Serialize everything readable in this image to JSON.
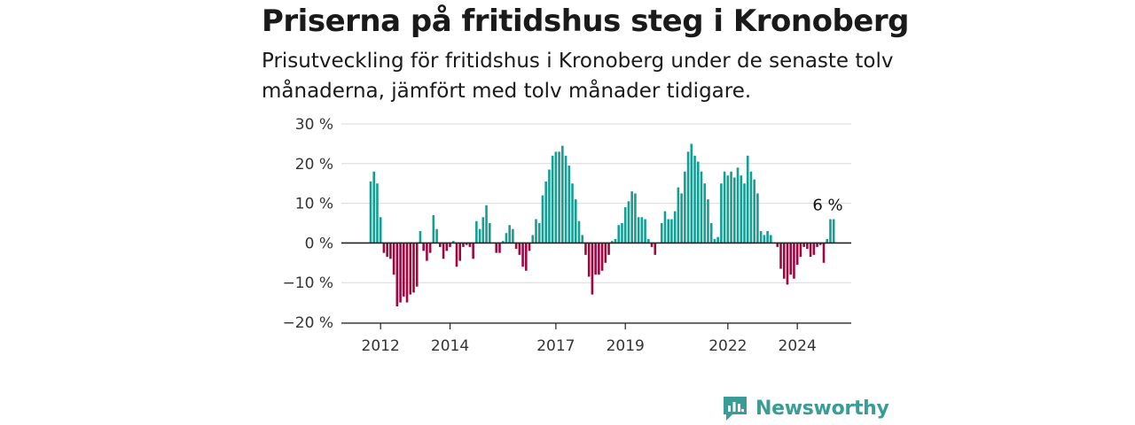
{
  "header": {
    "title": "Priserna på fritidshus steg i Kronoberg",
    "subtitle": "Prisutveckling för fritidshus i Kronoberg under de senaste tolv månaderna, jämfört med tolv månader tidigare."
  },
  "brand": {
    "name": "Newsworthy",
    "color": "#3a9c96"
  },
  "colors": {
    "positive": "#139f94",
    "negative": "#a0073f"
  },
  "chart_data": {
    "type": "bar",
    "title": "Priserna på fritidshus steg i Kronoberg",
    "subtitle": "Prisutveckling för fritidshus i Kronoberg under de senaste tolv månaderna, jämfört med tolv månader tidigare.",
    "xlabel": "",
    "ylabel": "",
    "ylim": [
      -20,
      30
    ],
    "yticks": [
      30,
      20,
      10,
      0,
      -10,
      -20
    ],
    "ytick_labels": [
      "30 %",
      "20 %",
      "10 %",
      "0 %",
      "−10 %",
      "−20 %"
    ],
    "xtick_labels": [
      "2012",
      "2014",
      "2017",
      "2019",
      "2022",
      "2024"
    ],
    "xtick_positions": [
      3,
      24,
      56,
      77,
      108,
      129
    ],
    "grid": true,
    "annotation": {
      "text": "6 %",
      "index": 139
    },
    "values": [
      15.5,
      18,
      15,
      6.5,
      -2.5,
      -3.5,
      -4,
      -8,
      -16,
      -15,
      -13.5,
      -15,
      -13,
      -12.5,
      -11,
      3,
      -2,
      -4.5,
      -2.5,
      7,
      3.5,
      -1,
      -4,
      -2,
      -1,
      0.5,
      -6,
      -4.5,
      -1,
      -0.5,
      -1,
      -4,
      5.5,
      3.5,
      6.5,
      9.5,
      5,
      0,
      -2.5,
      -2.5,
      0.5,
      2.5,
      4.5,
      3.5,
      -1.5,
      -3,
      -6,
      -7,
      -2,
      2,
      6,
      5,
      12,
      15.5,
      18.5,
      22,
      23,
      23,
      24.5,
      22,
      19.5,
      15,
      11,
      5.5,
      2,
      -3,
      -8.5,
      -13,
      -8,
      -8,
      -7,
      -5,
      -3,
      0.5,
      1,
      4.5,
      5,
      9,
      10.5,
      13,
      12.5,
      6.5,
      6.5,
      6,
      1,
      -1,
      -3,
      0,
      5,
      8,
      6,
      6,
      8,
      14,
      12.5,
      18,
      23,
      25,
      22,
      20.5,
      18,
      15,
      11,
      5,
      1,
      1.5,
      15,
      18,
      17,
      18,
      16.5,
      19,
      17,
      15,
      22,
      18,
      16,
      12.5,
      3,
      2,
      3,
      2,
      0,
      -1,
      -6.5,
      -9,
      -10.5,
      -8,
      -9,
      -5.5,
      -3.5,
      -1,
      -1.5,
      -3.5,
      -3,
      -1,
      -0.5,
      -5,
      1,
      6,
      6
    ]
  }
}
